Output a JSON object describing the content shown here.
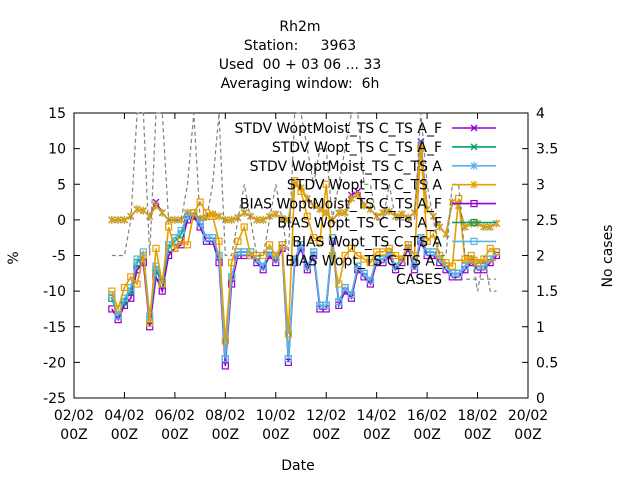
{
  "chart_data": {
    "type": "line",
    "title_lines": [
      "Rh2m",
      "Station:     3963",
      "Used  00 + 03 06 ... 33",
      "Averaging window:  6h"
    ],
    "xlabel": "Date",
    "ylabel": "%",
    "y2label": "No cases",
    "x_ticks": [
      "02/02\n00Z",
      "04/02\n00Z",
      "06/02\n00Z",
      "08/02\n00Z",
      "10/02\n00Z",
      "12/02\n00Z",
      "14/02\n00Z",
      "16/02\n00Z",
      "18/02\n00Z",
      "20/02\n00Z"
    ],
    "xlim": [
      "02/02 00Z",
      "20/02 00Z"
    ],
    "ylim": [
      -25,
      15
    ],
    "y_ticks": [
      -25,
      -20,
      -15,
      -10,
      -5,
      0,
      5,
      10,
      15
    ],
    "y2lim": [
      0,
      4
    ],
    "y2_ticks": [
      0,
      0.5,
      1,
      1.5,
      2,
      2.5,
      3,
      3.5,
      4
    ],
    "legend_position": "top-right",
    "x_days": [
      3.5,
      3.75,
      4,
      4.25,
      4.5,
      4.75,
      5,
      5.25,
      5.5,
      5.75,
      6,
      6.25,
      6.5,
      6.75,
      7,
      7.25,
      7.5,
      7.75,
      8,
      8.25,
      8.5,
      8.75,
      9,
      9.25,
      9.5,
      9.75,
      10,
      10.25,
      10.5,
      10.75,
      11,
      11.25,
      11.5,
      11.75,
      12,
      12.25,
      12.5,
      12.75,
      13,
      13.25,
      13.5,
      13.75,
      14,
      14.25,
      14.5,
      14.75,
      15,
      15.25,
      15.5,
      15.75,
      16,
      16.25,
      16.5,
      16.75,
      17,
      17.25,
      17.5,
      17.75,
      18,
      18.25,
      18.5,
      18.75
    ],
    "series": [
      {
        "name": "STDV WoptMoist_TS C_TS A_F",
        "color": "#9400d3",
        "marker": "x",
        "axis": "y",
        "values": [
          0,
          0,
          0,
          0.5,
          1.5,
          1.3,
          0.5,
          2.5,
          1,
          0,
          0,
          0,
          1,
          0.5,
          0.2,
          0.4,
          0.8,
          0.5,
          0,
          0,
          0.3,
          1,
          0.5,
          0,
          0,
          0.5,
          0.8,
          0.2,
          0,
          5,
          4.5,
          3,
          2,
          1.5,
          1,
          0,
          1,
          1,
          3.5,
          4,
          2,
          1.5,
          0.5,
          1,
          1.2,
          0.5,
          0.8,
          0.3,
          1,
          11,
          1.5,
          0.5,
          -1,
          -2,
          2.5,
          2,
          -1,
          -0.5,
          -0.5,
          -1,
          -1,
          -0.5
        ]
      },
      {
        "name": "STDV Wopt_TS C_TS A_F",
        "color": "#009e73",
        "marker": "x",
        "axis": "y",
        "values": [
          0,
          0,
          0,
          0.5,
          1.5,
          1.3,
          0.5,
          2,
          1,
          0,
          0,
          0,
          1,
          0.5,
          0.2,
          0.4,
          0.8,
          0.5,
          0,
          0,
          0.3,
          1,
          0.5,
          0,
          0,
          0.5,
          0.8,
          0.2,
          0,
          5,
          4.5,
          3,
          2,
          1.5,
          1,
          0,
          1,
          1,
          3,
          3.5,
          2,
          1.5,
          0.5,
          1,
          1.2,
          0.5,
          0.8,
          0.3,
          1,
          10.5,
          1.5,
          0.5,
          -1,
          -2,
          2.5,
          2,
          -1,
          -0.5,
          -0.5,
          -1,
          -1,
          -0.5
        ]
      },
      {
        "name": "STDV WoptMoist_TS C_TS A",
        "color": "#56b4e9",
        "marker": "star",
        "axis": "y",
        "values": [
          0,
          0,
          0,
          0.5,
          1.5,
          1.3,
          0.5,
          2,
          1,
          0,
          0,
          0,
          1,
          0.5,
          0.2,
          0.4,
          0.8,
          0.5,
          0,
          0,
          0.3,
          1,
          0.5,
          0,
          0,
          0.5,
          0.8,
          0.2,
          0,
          5,
          4.5,
          3,
          2,
          1.5,
          1,
          0,
          1,
          1,
          3,
          3.5,
          2,
          1.5,
          0.5,
          1,
          1.2,
          0.5,
          0.8,
          0.3,
          1,
          10.5,
          1.5,
          0.5,
          -1,
          -2,
          2.5,
          2,
          -1,
          -0.5,
          -0.5,
          -1,
          -1,
          -0.5
        ]
      },
      {
        "name": "STDV Wopt_TS C_TS A",
        "color": "#e69f00",
        "marker": "star",
        "axis": "y",
        "values": [
          0,
          0,
          0,
          0.5,
          1.5,
          1.3,
          0.5,
          2,
          1,
          0,
          0,
          0,
          1,
          0.5,
          0.2,
          0.4,
          0.8,
          0.5,
          0,
          0,
          0.3,
          1,
          0.5,
          0,
          0,
          0.5,
          0.8,
          0.2,
          0,
          5,
          4.5,
          3,
          2,
          1.5,
          1,
          0,
          1,
          1,
          3,
          3.5,
          2,
          1.5,
          0.5,
          1,
          1.2,
          0.5,
          0.8,
          0.3,
          1,
          10,
          1.5,
          0.5,
          -1,
          -2,
          2.5,
          2,
          -1,
          -0.5,
          -0.5,
          -1,
          -1,
          -0.5
        ]
      },
      {
        "name": "BIAS WoptMoist_TS C_TS A_F",
        "color": "#9400d3",
        "marker": "square",
        "axis": "y",
        "values": [
          -12.5,
          -14,
          -12,
          -11,
          -7,
          -6,
          -15,
          -8,
          -10,
          -5,
          -4,
          -3.5,
          0,
          0.5,
          -1,
          -3,
          -3,
          -6,
          -20.5,
          -9,
          -5,
          -5,
          -5,
          -6,
          -7,
          -5,
          -6,
          -4,
          -20,
          -6,
          -4,
          -7,
          -5,
          -12.5,
          -12.5,
          -3,
          -12,
          -10,
          -11,
          -7,
          -8,
          -9,
          -6,
          -6,
          -5,
          -7,
          -6,
          -4,
          -7,
          -3,
          -5,
          -5,
          -6,
          -7,
          -8,
          -8,
          -7,
          -6,
          -7,
          -7,
          -6,
          -5
        ]
      },
      {
        "name": "BIAS Wopt_TS C_TS A_F",
        "color": "#009e73",
        "marker": "square",
        "axis": "y",
        "values": [
          -11,
          -13.5,
          -11.5,
          -10,
          -6,
          -5,
          -14,
          -7,
          -9,
          -4,
          -3,
          -2,
          0.5,
          1,
          -0.5,
          -2.5,
          -2.5,
          -5,
          -19.5,
          -8,
          -4.5,
          -4.5,
          -4.5,
          -5.5,
          -6.5,
          -4.5,
          -5.5,
          -3.5,
          -19.5,
          -5.5,
          -3.5,
          -6.5,
          -4.5,
          -12,
          -12,
          -2.5,
          -11.5,
          -9.5,
          -10.5,
          -6.5,
          -7.5,
          -8.5,
          -5.5,
          -5.5,
          -4.5,
          -6.5,
          -5.5,
          -3.5,
          -6.5,
          -2.5,
          -4.5,
          -4.5,
          -5.5,
          -6.5,
          -7.5,
          -7.5,
          -6.5,
          -5.5,
          -6.5,
          -6.5,
          -5.5,
          -4.5
        ]
      },
      {
        "name": "BIAS Wopt_TS C_TS A",
        "color": "#56b4e9",
        "marker": "square",
        "axis": "y",
        "values": [
          -10.5,
          -13.5,
          -11,
          -9.5,
          -5.5,
          -4.5,
          -13.5,
          -6.5,
          -8.5,
          -3.5,
          -2.5,
          -1.5,
          0.5,
          1,
          -0.5,
          -2.5,
          -2.5,
          -5,
          -19.5,
          -8,
          -4.5,
          -4.5,
          -4.5,
          -5.5,
          -6.5,
          -4.5,
          -5.5,
          -3.5,
          -19.5,
          -5.5,
          -3.5,
          -6.5,
          -4.5,
          -12,
          -12,
          -2.5,
          -11.5,
          -9.5,
          -10.5,
          -6.5,
          -7.5,
          -8.5,
          -5.5,
          -5.5,
          -4.5,
          -6.5,
          -5.5,
          -3.5,
          -6.5,
          -2.5,
          -4.5,
          -4.5,
          -5.5,
          -6.5,
          -7.5,
          -7.5,
          -6.5,
          -5.5,
          -6.5,
          -6.5,
          -5.5,
          -4.5
        ]
      },
      {
        "name": "BIAS Wopt_TS C_TS A_",
        "color": "#e69f00",
        "marker": "square",
        "axis": "y",
        "values": [
          -10,
          -12.5,
          -9.5,
          -8,
          -9,
          -5,
          -14.5,
          -4,
          -9,
          -1,
          -4,
          -3,
          -3.5,
          1,
          2.5,
          1,
          0.5,
          -3,
          -17,
          -6,
          -3,
          -1,
          -5,
          -5,
          -5,
          -3.5,
          -5,
          -3.5,
          -16,
          5.5,
          4,
          0.5,
          -2.5,
          -3,
          5,
          -5,
          -9,
          -5,
          -4,
          -5,
          -5.5,
          -6,
          -4.5,
          -4.5,
          -4,
          -5,
          -5.5,
          -3.5,
          -5,
          10,
          -3,
          -2,
          -5,
          -6,
          -6.5,
          3,
          -5.5,
          -5,
          -6,
          -5.5,
          -4,
          -4.5
        ]
      },
      {
        "name": "CASES",
        "color": "#808080",
        "marker": "none",
        "axis": "y2",
        "values": [
          2,
          2,
          2,
          2.5,
          4,
          4,
          2,
          4,
          4,
          2.5,
          2.5,
          2.5,
          3,
          4,
          2.5,
          2.5,
          3,
          4,
          2,
          2,
          2.5,
          3,
          2.5,
          2,
          2,
          2.5,
          3,
          2.5,
          2,
          4,
          4,
          3.5,
          3,
          3.5,
          3.5,
          2.5,
          3,
          3.5,
          4,
          4,
          3,
          3,
          2.5,
          2.5,
          3,
          2.5,
          2.5,
          2.5,
          2.5,
          4,
          3,
          2.5,
          2,
          2,
          3,
          3,
          2,
          2,
          1.5,
          2,
          1.5,
          1.5
        ]
      }
    ]
  }
}
